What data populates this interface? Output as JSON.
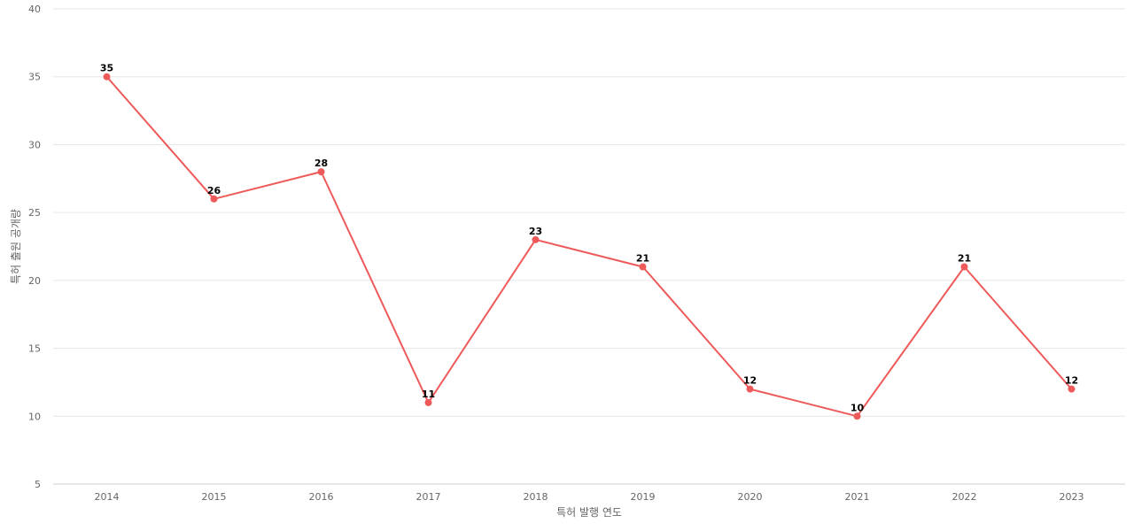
{
  "chart_data": {
    "type": "line",
    "title": "",
    "xlabel": "특허 발행 연도",
    "ylabel": "특허 출원 공개량",
    "categories": [
      "2014",
      "2015",
      "2016",
      "2017",
      "2018",
      "2019",
      "2020",
      "2021",
      "2022",
      "2023"
    ],
    "series": [
      {
        "values": [
          35,
          26,
          28,
          11,
          23,
          21,
          12,
          10,
          21,
          12
        ]
      }
    ],
    "ylim": [
      5,
      40
    ],
    "yticks": [
      5,
      10,
      15,
      20,
      25,
      30,
      35,
      40
    ],
    "grid": true,
    "legend": "none",
    "data_labels": true,
    "colors": {
      "line": "#ee5a5a",
      "grid": "#e6e6e6",
      "tick_text": "#666666",
      "label_text": "#000000"
    }
  }
}
